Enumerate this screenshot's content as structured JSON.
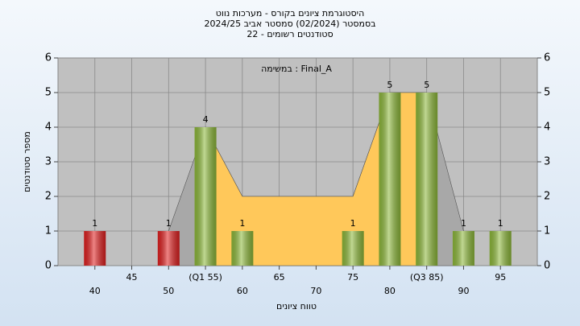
{
  "chart_data": {
    "type": "bar",
    "title": [
      "היסטוגרמת ציונים בקורס - מערכות נווט",
      "בסמסטר  (02/2024)  סמסטר אביב 2024/25",
      "סטודנטים רשומים - 22"
    ],
    "annotation": "במשימה : Final_A",
    "xlabel": "טווח ציונים",
    "ylabel": "מספר סטודנטים",
    "categories": [
      "40",
      "45",
      "50",
      "(Q1 55)",
      "60",
      "65",
      "70",
      "75",
      "80",
      "(Q3 85)",
      "90",
      "95"
    ],
    "values": [
      1,
      0,
      1,
      4,
      1,
      0,
      0,
      1,
      5,
      5,
      1,
      1
    ],
    "colors": [
      "#e02020",
      "#e02020",
      "#e02020",
      "#8db83a",
      "#8db83a",
      "#8db83a",
      "#8db83a",
      "#8db83a",
      "#8db83a",
      "#8db83a",
      "#8db83a",
      "#8db83a"
    ],
    "areas": [
      {
        "color": "#a8a8a8",
        "values": [
          null,
          null,
          1,
          4,
          2,
          2,
          2,
          2,
          5,
          5,
          1,
          null
        ]
      },
      {
        "color": "#ffc85a",
        "values": [
          null,
          null,
          null,
          4,
          2,
          2,
          2,
          2,
          5,
          5,
          null,
          null
        ]
      }
    ],
    "ylim": [
      0,
      6
    ],
    "yticks": [
      0,
      1,
      2,
      3,
      4,
      5,
      6
    ],
    "y2lim": [
      0,
      6
    ],
    "y2ticks": [
      0,
      1,
      2,
      3,
      4,
      5,
      6
    ],
    "grid": true
  }
}
